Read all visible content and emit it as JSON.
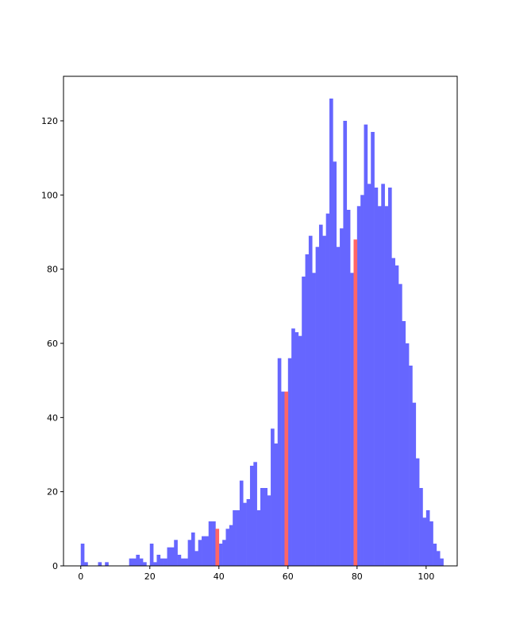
{
  "chart_data": {
    "type": "bar",
    "title": "",
    "xlabel": "",
    "ylabel": "",
    "xlim": [
      -5,
      109
    ],
    "ylim": [
      0,
      132
    ],
    "xticks": [
      0,
      20,
      40,
      60,
      80,
      100
    ],
    "yticks": [
      0,
      20,
      40,
      60,
      80,
      100,
      120
    ],
    "grid": false,
    "bin_width": 1,
    "series": [
      {
        "color": "#6666ff",
        "bins": [
          [
            0,
            6
          ],
          [
            1,
            1
          ],
          [
            5,
            1
          ],
          [
            7,
            1
          ],
          [
            14,
            2
          ],
          [
            15,
            2
          ],
          [
            16,
            3
          ],
          [
            17,
            2
          ],
          [
            18,
            1
          ],
          [
            20,
            6
          ],
          [
            21,
            1
          ],
          [
            22,
            3
          ],
          [
            23,
            2
          ],
          [
            24,
            2
          ],
          [
            25,
            5
          ],
          [
            26,
            5
          ],
          [
            27,
            7
          ],
          [
            28,
            3
          ],
          [
            29,
            2
          ],
          [
            30,
            2
          ],
          [
            31,
            7
          ],
          [
            32,
            9
          ],
          [
            33,
            4
          ],
          [
            34,
            7
          ],
          [
            35,
            8
          ],
          [
            36,
            8
          ],
          [
            37,
            12
          ],
          [
            38,
            12
          ],
          [
            40,
            6
          ],
          [
            41,
            7
          ],
          [
            42,
            10
          ],
          [
            43,
            11
          ],
          [
            44,
            15
          ],
          [
            45,
            15
          ],
          [
            46,
            23
          ],
          [
            47,
            17
          ],
          [
            48,
            18
          ],
          [
            49,
            27
          ],
          [
            50,
            28
          ],
          [
            51,
            15
          ],
          [
            52,
            21
          ],
          [
            53,
            21
          ],
          [
            54,
            19
          ],
          [
            55,
            37
          ],
          [
            56,
            33
          ],
          [
            57,
            56
          ],
          [
            58,
            47
          ],
          [
            60,
            56
          ],
          [
            61,
            64
          ],
          [
            62,
            63
          ],
          [
            63,
            62
          ],
          [
            64,
            78
          ],
          [
            65,
            84
          ],
          [
            66,
            89
          ],
          [
            67,
            79
          ],
          [
            68,
            86
          ],
          [
            69,
            92
          ],
          [
            70,
            89
          ],
          [
            71,
            95
          ],
          [
            72,
            126
          ],
          [
            73,
            109
          ],
          [
            74,
            86
          ],
          [
            75,
            91
          ],
          [
            76,
            120
          ],
          [
            77,
            96
          ],
          [
            78,
            79
          ],
          [
            80,
            97
          ],
          [
            81,
            100
          ],
          [
            82,
            119
          ],
          [
            83,
            103
          ],
          [
            84,
            117
          ],
          [
            85,
            102
          ],
          [
            86,
            97
          ],
          [
            87,
            103
          ],
          [
            88,
            97
          ],
          [
            89,
            102
          ],
          [
            90,
            83
          ],
          [
            91,
            81
          ],
          [
            92,
            76
          ],
          [
            93,
            66
          ],
          [
            94,
            60
          ],
          [
            95,
            54
          ],
          [
            96,
            44
          ],
          [
            97,
            29
          ],
          [
            98,
            21
          ],
          [
            99,
            13
          ],
          [
            100,
            15
          ],
          [
            101,
            12
          ],
          [
            102,
            6
          ],
          [
            103,
            4
          ],
          [
            104,
            2
          ]
        ]
      },
      {
        "color": "#ff6666",
        "bins": [
          [
            39,
            10
          ],
          [
            59,
            47
          ],
          [
            79,
            88
          ]
        ]
      }
    ]
  }
}
